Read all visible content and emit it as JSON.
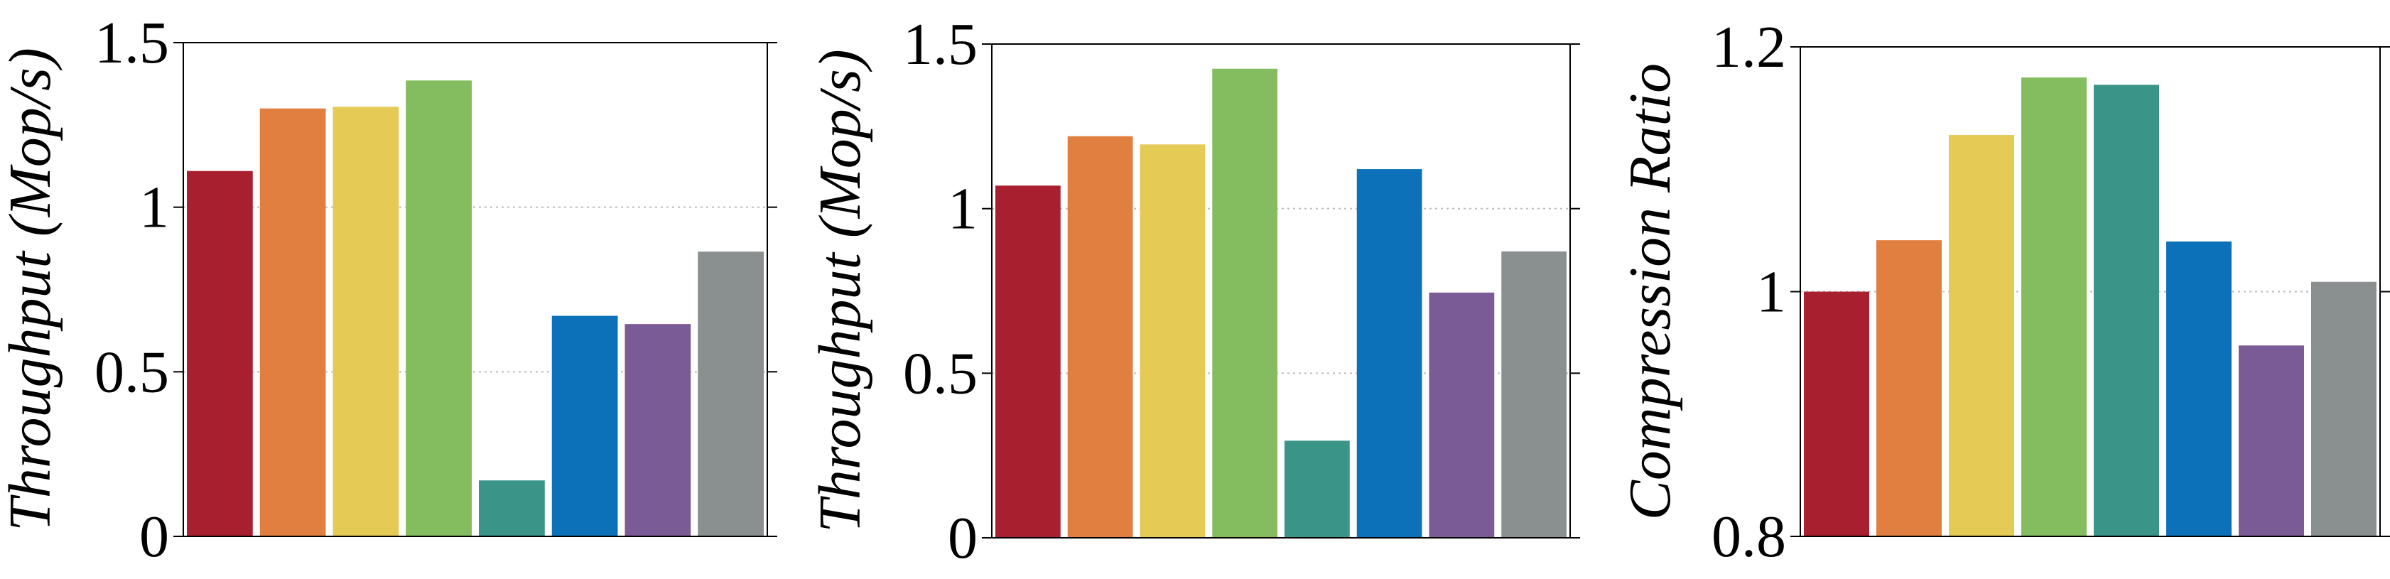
{
  "chart_data": [
    {
      "type": "bar",
      "categories": [
        "",
        "",
        "",
        "",
        "",
        "",
        "",
        ""
      ],
      "colors": [
        "#a8202f",
        "#e07f40",
        "#e5ca56",
        "#84bd5f",
        "#3a9487",
        "#0c71b8",
        "#7a5b95",
        "#8a8f8f"
      ],
      "values": [
        1.11,
        1.3,
        1.305,
        1.385,
        0.17,
        0.67,
        0.645,
        0.865
      ],
      "title": "",
      "xlabel": "",
      "ylabel": "Throughput (Mop/s)",
      "ylim": [
        0,
        1.5
      ],
      "yticks": [
        0,
        0.5,
        1,
        1.5
      ],
      "ytick_labels": [
        "0",
        "0.5",
        "1",
        "1.5"
      ],
      "grid": true
    },
    {
      "type": "bar",
      "categories": [
        "",
        "",
        "",
        "",
        "",
        "",
        "",
        ""
      ],
      "colors": [
        "#a8202f",
        "#e07f40",
        "#e5ca56",
        "#84bd5f",
        "#3a9487",
        "#0c71b8",
        "#7a5b95",
        "#8a8f8f"
      ],
      "values": [
        1.07,
        1.22,
        1.195,
        1.425,
        0.295,
        1.12,
        0.745,
        0.87
      ],
      "title": "",
      "xlabel": "",
      "ylabel": "Throughput (Mop/s)",
      "ylim": [
        0,
        1.5
      ],
      "yticks": [
        0,
        0.5,
        1,
        1.5
      ],
      "ytick_labels": [
        "0",
        "0.5",
        "1",
        "1.5"
      ],
      "grid": true
    },
    {
      "type": "bar",
      "categories": [
        "",
        "",
        "",
        "",
        "",
        "",
        "",
        ""
      ],
      "colors": [
        "#a8202f",
        "#e07f40",
        "#e5ca56",
        "#84bd5f",
        "#3a9487",
        "#0c71b8",
        "#7a5b95",
        "#8a8f8f"
      ],
      "values": [
        1.0,
        1.042,
        1.128,
        1.175,
        1.169,
        1.041,
        0.956,
        1.008
      ],
      "title": "",
      "xlabel": "",
      "ylabel": "Compression Ratio",
      "ylim": [
        0.8,
        1.2
      ],
      "yticks": [
        0.8,
        1,
        1.2
      ],
      "ytick_labels": [
        "0.8",
        "1",
        "1.2"
      ],
      "grid": true
    }
  ]
}
